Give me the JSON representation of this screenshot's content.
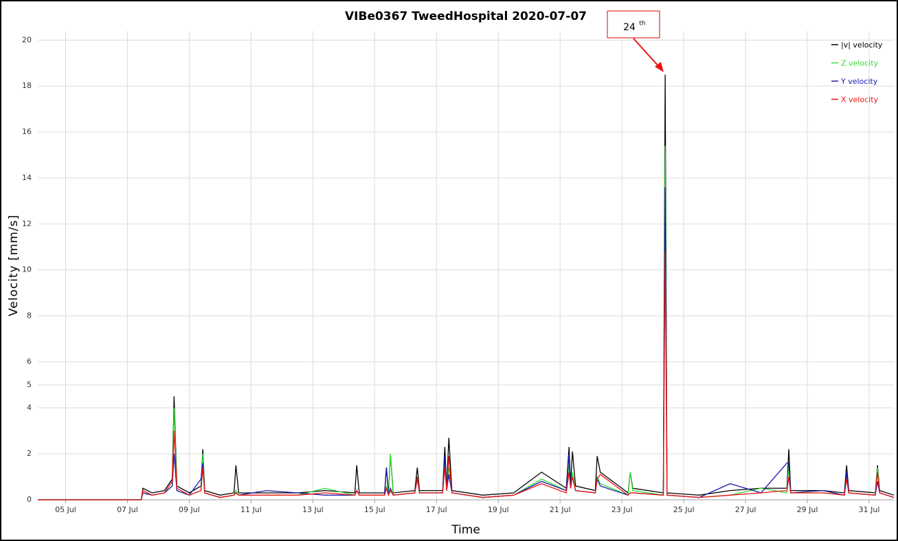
{
  "chart_data": {
    "type": "line",
    "title": "VIBe0367 TweedHospital 2020-07-07",
    "xlabel": "Time",
    "ylabel": "Velocity [mm/s]",
    "annotation": {
      "text": "24",
      "superscript": "th"
    },
    "x": [
      4.1,
      7.45,
      7.5,
      7.8,
      8.2,
      8.45,
      8.51,
      8.6,
      9.0,
      9.38,
      9.44,
      9.5,
      10.0,
      10.45,
      10.51,
      10.6,
      11.5,
      12.5,
      13.4,
      14.36,
      14.42,
      14.5,
      15.32,
      15.38,
      15.45,
      15.51,
      15.6,
      16.3,
      16.38,
      16.45,
      17.2,
      17.27,
      17.33,
      17.4,
      17.5,
      18.5,
      19.5,
      20.4,
      21.2,
      21.29,
      21.34,
      21.4,
      21.5,
      22.14,
      22.2,
      22.3,
      23.2,
      23.27,
      23.35,
      24.34,
      24.4,
      24.46,
      25.5,
      26.5,
      27.5,
      28.34,
      28.4,
      28.46,
      29.5,
      30.2,
      30.27,
      30.34,
      31.2,
      31.27,
      31.34,
      31.8
    ],
    "series": [
      {
        "name": "|v| velocity",
        "color": "#000000",
        "values": [
          0,
          0,
          0.5,
          0.3,
          0.4,
          0.9,
          4.5,
          0.6,
          0.3,
          0.6,
          2.2,
          0.4,
          0.2,
          0.3,
          1.5,
          0.3,
          0.3,
          0.3,
          0.4,
          0.3,
          1.5,
          0.3,
          0.3,
          1.4,
          0.3,
          2.0,
          0.3,
          0.4,
          1.4,
          0.4,
          0.4,
          2.3,
          0.5,
          2.7,
          0.4,
          0.2,
          0.3,
          1.2,
          0.5,
          2.3,
          0.7,
          2.1,
          0.6,
          0.4,
          1.9,
          1.2,
          0.3,
          1.2,
          0.5,
          0.3,
          18.5,
          0.3,
          0.2,
          0.4,
          0.5,
          0.5,
          2.2,
          0.4,
          0.4,
          0.3,
          1.5,
          0.4,
          0.3,
          1.5,
          0.4,
          0.2
        ]
      },
      {
        "name": "Z velocity",
        "color": "#33dd33",
        "values": [
          0,
          0,
          0.3,
          0.2,
          0.3,
          0.6,
          4.0,
          0.4,
          0.2,
          0.4,
          2.0,
          0.3,
          0.1,
          0.2,
          0.4,
          0.2,
          0.2,
          0.2,
          0.5,
          0.2,
          0.4,
          0.2,
          0.2,
          0.6,
          0.2,
          2.0,
          0.2,
          0.3,
          1.0,
          0.3,
          0.3,
          1.8,
          0.4,
          1.4,
          0.3,
          0.1,
          0.2,
          0.9,
          0.4,
          1.5,
          0.5,
          1.2,
          0.4,
          0.3,
          1.0,
          0.7,
          0.2,
          1.2,
          0.4,
          0.2,
          15.4,
          0.2,
          0.1,
          0.2,
          0.5,
          0.3,
          1.5,
          0.3,
          0.3,
          0.2,
          1.0,
          0.3,
          0.2,
          1.4,
          0.3,
          0.1
        ]
      },
      {
        "name": "Y velocity",
        "color": "#1a1aaa",
        "values": [
          0,
          0,
          0.3,
          0.2,
          0.3,
          0.6,
          2.0,
          0.4,
          0.2,
          0.9,
          1.6,
          0.3,
          0.1,
          0.2,
          0.3,
          0.2,
          0.4,
          0.3,
          0.2,
          0.2,
          0.4,
          0.2,
          0.2,
          1.4,
          0.2,
          0.5,
          0.2,
          0.3,
          0.9,
          0.3,
          0.3,
          1.9,
          0.4,
          1.1,
          0.3,
          0.1,
          0.2,
          0.8,
          0.4,
          2.0,
          0.5,
          1.0,
          0.4,
          0.3,
          0.9,
          0.6,
          0.2,
          0.3,
          0.3,
          0.2,
          13.6,
          0.2,
          0.1,
          0.7,
          0.3,
          1.6,
          1.6,
          0.3,
          0.4,
          0.2,
          1.2,
          0.3,
          0.2,
          0.8,
          0.3,
          0.1
        ]
      },
      {
        "name": "X velocity",
        "color": "#ee1111",
        "values": [
          0,
          0,
          0.4,
          0.2,
          0.3,
          0.8,
          3.0,
          0.5,
          0.2,
          0.4,
          1.4,
          0.3,
          0.1,
          0.2,
          0.3,
          0.2,
          0.2,
          0.2,
          0.3,
          0.2,
          0.4,
          0.2,
          0.2,
          0.5,
          0.2,
          0.4,
          0.2,
          0.3,
          1.0,
          0.3,
          0.3,
          1.4,
          0.4,
          1.9,
          0.3,
          0.1,
          0.2,
          0.7,
          0.3,
          1.2,
          0.5,
          1.0,
          0.4,
          0.3,
          0.9,
          1.1,
          0.2,
          0.3,
          0.3,
          0.2,
          10.8,
          0.2,
          0.1,
          0.2,
          0.3,
          0.4,
          1.0,
          0.3,
          0.3,
          0.2,
          0.9,
          0.3,
          0.2,
          1.2,
          0.3,
          0.1
        ]
      }
    ],
    "xlim": [
      4.1,
      31.8
    ],
    "xticks": [
      {
        "value": 5,
        "label": "05 Jul"
      },
      {
        "value": 7,
        "label": "07 Jul"
      },
      {
        "value": 9,
        "label": "09 Jul"
      },
      {
        "value": 11,
        "label": "11 Jul"
      },
      {
        "value": 13,
        "label": "13 Jul"
      },
      {
        "value": 15,
        "label": "15 Jul"
      },
      {
        "value": 17,
        "label": "17 Jul"
      },
      {
        "value": 19,
        "label": "19 Jul"
      },
      {
        "value": 21,
        "label": "21 Jul"
      },
      {
        "value": 23,
        "label": "23 Jul"
      },
      {
        "value": 25,
        "label": "25 Jul"
      },
      {
        "value": 27,
        "label": "27 Jul"
      },
      {
        "value": 29,
        "label": "29 Jul"
      },
      {
        "value": 31,
        "label": "31 Jul"
      }
    ],
    "ylim": [
      0,
      20.4
    ],
    "yticks": [
      0,
      2,
      4,
      5,
      6,
      8,
      10,
      12,
      14,
      16,
      18,
      20
    ],
    "grid": true,
    "legend": "upper right"
  }
}
